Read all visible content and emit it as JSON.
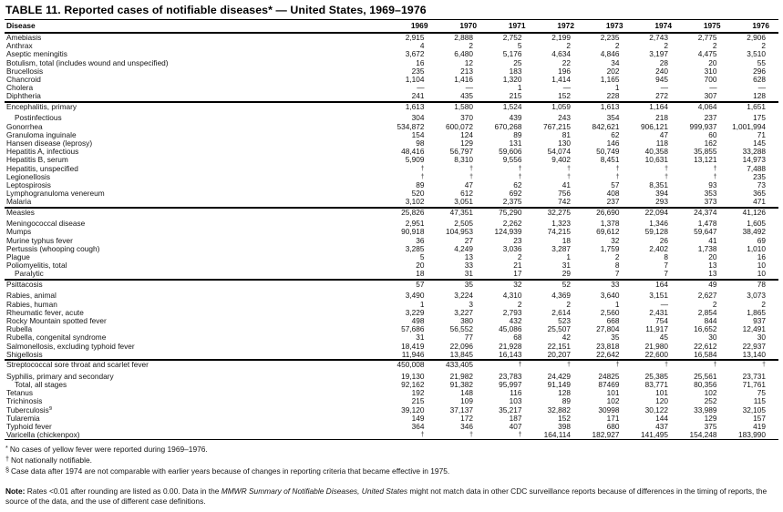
{
  "title": "TABLE 11. Reported cases of notifiable diseases* — United States, 1969–1976",
  "table": {
    "disease_header": "Disease",
    "year_headers": [
      "1969",
      "1970",
      "1971",
      "1972",
      "1973",
      "1974",
      "1975",
      "1976"
    ],
    "sections": [
      {
        "rows": [
          {
            "name": "Amebiasis",
            "values": [
              "2,915",
              "2,888",
              "2,752",
              "2,199",
              "2,235",
              "2,743",
              "2,775",
              "2,906"
            ]
          },
          {
            "name": "Anthrax",
            "values": [
              "4",
              "2",
              "5",
              "2",
              "2",
              "2",
              "2",
              "2"
            ]
          },
          {
            "name": "Aseptic meningitis",
            "values": [
              "3,672",
              "6,480",
              "5,176",
              "4,634",
              "4,846",
              "3,197",
              "4,475",
              "3,510"
            ]
          },
          {
            "name": "Botulism, total (includes wound and unspecified)",
            "values": [
              "16",
              "12",
              "25",
              "22",
              "34",
              "28",
              "20",
              "55"
            ]
          },
          {
            "name": "Brucellosis",
            "values": [
              "235",
              "213",
              "183",
              "196",
              "202",
              "240",
              "310",
              "296"
            ]
          },
          {
            "name": "Chancroid",
            "values": [
              "1,104",
              "1,416",
              "1,320",
              "1,414",
              "1,165",
              "945",
              "700",
              "628"
            ]
          },
          {
            "name": "Cholera",
            "values": [
              "—",
              "—",
              "1",
              "—",
              "1",
              "—",
              "—",
              "—"
            ]
          },
          {
            "name": "Diphtheria",
            "values": [
              "241",
              "435",
              "215",
              "152",
              "228",
              "272",
              "307",
              "128"
            ]
          }
        ]
      },
      {
        "rows": [
          {
            "name": "Encephalitis, primary",
            "values": [
              "1,613",
              "1,580",
              "1,524",
              "1,059",
              "1,613",
              "1,164",
              "4,064",
              "1,651"
            ]
          },
          {
            "name": "Postinfectious",
            "indent": true,
            "values": [
              "304",
              "370",
              "439",
              "243",
              "354",
              "218",
              "237",
              "175"
            ]
          },
          {
            "name": "Gonorrhea",
            "values": [
              "534,872",
              "600,072",
              "670,268",
              "767,215",
              "842,621",
              "906,121",
              "999,937",
              "1,001,994"
            ]
          },
          {
            "name": "Granuloma inguinale",
            "values": [
              "154",
              "124",
              "89",
              "81",
              "62",
              "47",
              "60",
              "71"
            ]
          },
          {
            "name": "Hansen disease (leprosy)",
            "values": [
              "98",
              "129",
              "131",
              "130",
              "146",
              "118",
              "162",
              "145"
            ]
          },
          {
            "name": "Hepatitis A, infectious",
            "values": [
              "48,416",
              "56,797",
              "59,606",
              "54,074",
              "50,749",
              "40,358",
              "35,855",
              "33,288"
            ]
          },
          {
            "name": "Hepatitis B, serum",
            "values": [
              "5,909",
              "8,310",
              "9,556",
              "9,402",
              "8,451",
              "10,631",
              "13,121",
              "14,973"
            ]
          },
          {
            "name": "Hepatitis, unspecified",
            "values": [
              "†",
              "†",
              "†",
              "†",
              "†",
              "†",
              "†",
              "7,488"
            ]
          },
          {
            "name": "Legionellosis",
            "values": [
              "†",
              "†",
              "†",
              "†",
              "†",
              "†",
              "†",
              "235"
            ]
          },
          {
            "name": "Leptospirosis",
            "values": [
              "89",
              "47",
              "62",
              "41",
              "57",
              "8,351",
              "93",
              "73"
            ]
          },
          {
            "name": "Lymphogranuloma venereum",
            "values": [
              "520",
              "612",
              "692",
              "756",
              "408",
              "394",
              "353",
              "365"
            ]
          },
          {
            "name": "Malaria",
            "values": [
              "3,102",
              "3,051",
              "2,375",
              "742",
              "237",
              "293",
              "373",
              "471"
            ]
          }
        ]
      },
      {
        "rows": [
          {
            "name": "Measles",
            "values": [
              "25,826",
              "47,351",
              "75,290",
              "32,275",
              "26,690",
              "22,094",
              "24,374",
              "41,126"
            ]
          },
          {
            "name": "Meningococcal disease",
            "values": [
              "2,951",
              "2,505",
              "2,262",
              "1,323",
              "1,378",
              "1,346",
              "1,478",
              "1,605"
            ]
          },
          {
            "name": "Mumps",
            "values": [
              "90,918",
              "104,953",
              "124,939",
              "74,215",
              "69,612",
              "59,128",
              "59,647",
              "38,492"
            ]
          },
          {
            "name": "Murine typhus fever",
            "values": [
              "36",
              "27",
              "23",
              "18",
              "32",
              "26",
              "41",
              "69"
            ]
          },
          {
            "name": "Pertussis (whooping cough)",
            "values": [
              "3,285",
              "4,249",
              "3,036",
              "3,287",
              "1,759",
              "2,402",
              "1,738",
              "1,010"
            ]
          },
          {
            "name": "Plague",
            "values": [
              "5",
              "13",
              "2",
              "1",
              "2",
              "8",
              "20",
              "16"
            ]
          },
          {
            "name": "Poliomyelitis, total",
            "values": [
              "20",
              "33",
              "21",
              "31",
              "8",
              "7",
              "13",
              "10"
            ]
          },
          {
            "name": "Paralytic",
            "indent": true,
            "values": [
              "18",
              "31",
              "17",
              "29",
              "7",
              "7",
              "13",
              "10"
            ]
          }
        ]
      },
      {
        "rows": [
          {
            "name": "Psittacosis",
            "values": [
              "57",
              "35",
              "32",
              "52",
              "33",
              "164",
              "49",
              "78"
            ]
          },
          {
            "name": "Rabies, animal",
            "values": [
              "3,490",
              "3,224",
              "4,310",
              "4,369",
              "3,640",
              "3,151",
              "2,627",
              "3,073"
            ]
          },
          {
            "name": "Rabies, human",
            "values": [
              "1",
              "3",
              "2",
              "2",
              "1",
              "—",
              "2",
              "2"
            ]
          },
          {
            "name": "Rheumatic fever, acute",
            "values": [
              "3,229",
              "3,227",
              "2,793",
              "2,614",
              "2,560",
              "2,431",
              "2,854",
              "1,865"
            ]
          },
          {
            "name": "Rocky Mountain spotted fever",
            "values": [
              "498",
              "380",
              "432",
              "523",
              "668",
              "754",
              "844",
              "937"
            ]
          },
          {
            "name": "Rubella",
            "values": [
              "57,686",
              "56,552",
              "45,086",
              "25,507",
              "27,804",
              "11,917",
              "16,652",
              "12,491"
            ]
          },
          {
            "name": "Rubella, congenital syndrome",
            "values": [
              "31",
              "77",
              "68",
              "42",
              "35",
              "45",
              "30",
              "30"
            ]
          },
          {
            "name": "Salmonellosis, excluding typhoid fever",
            "values": [
              "18,419",
              "22,096",
              "21,928",
              "22,151",
              "23,818",
              "21,980",
              "22,612",
              "22,937"
            ]
          },
          {
            "name": "Shigellosis",
            "values": [
              "11,946",
              "13,845",
              "16,143",
              "20,207",
              "22,642",
              "22,600",
              "16,584",
              "13,140"
            ]
          }
        ]
      },
      {
        "rows": [
          {
            "name": "Streptococcal sore throat and scarlet fever",
            "values": [
              "450,008",
              "433,405",
              "†",
              "†",
              "†",
              "†",
              "†",
              "†"
            ]
          },
          {
            "name": "Syphilis, primary and secondary",
            "values": [
              "19,130",
              "21,982",
              "23,783",
              "24,429",
              "24825",
              "25,385",
              "25,561",
              "23,731"
            ]
          },
          {
            "name": "Total, all stages",
            "indent": true,
            "values": [
              "92,162",
              "91,382",
              "95,997",
              "91,149",
              "87469",
              "83,771",
              "80,356",
              "71,761"
            ]
          },
          {
            "name": "Tetanus",
            "values": [
              "192",
              "148",
              "116",
              "128",
              "101",
              "101",
              "102",
              "75"
            ]
          },
          {
            "name": "Trichinosis",
            "values": [
              "215",
              "109",
              "103",
              "89",
              "102",
              "120",
              "252",
              "115"
            ]
          },
          {
            "name": "Tuberculosis",
            "sup": "§",
            "values": [
              "39,120",
              "37,137",
              "35,217",
              "32,882",
              "30998",
              "30,122",
              "33,989",
              "32,105"
            ]
          },
          {
            "name": "Tularemia",
            "values": [
              "149",
              "172",
              "187",
              "152",
              "171",
              "144",
              "129",
              "157"
            ]
          },
          {
            "name": "Typhoid fever",
            "values": [
              "364",
              "346",
              "407",
              "398",
              "680",
              "437",
              "375",
              "419"
            ]
          },
          {
            "name": "Varicella (chickenpox)",
            "values": [
              "†",
              "†",
              "†",
              "164,114",
              "182,927",
              "141,495",
              "154,248",
              "183,990"
            ]
          }
        ]
      }
    ]
  },
  "footnotes": [
    {
      "marker": "*",
      "text": "No cases of yellow fever were reported during 1969–1976."
    },
    {
      "marker": "†",
      "text": "Not nationally notifiable."
    },
    {
      "marker": "§",
      "text": "Case data after 1974 are not comparable with earlier years because of changes in reporting criteria that became effective in 1975."
    }
  ],
  "note": {
    "label": "Note:",
    "before_italic": " Rates <0.01 after rounding are listed as 0.00. Data in the ",
    "italic": "MMWR Summary of Notifiable Diseases, United States",
    "after_italic": " might not match data in other CDC surveillance reports because of differences in the timing of reports, the source of the data, and the use of different case definitions."
  }
}
